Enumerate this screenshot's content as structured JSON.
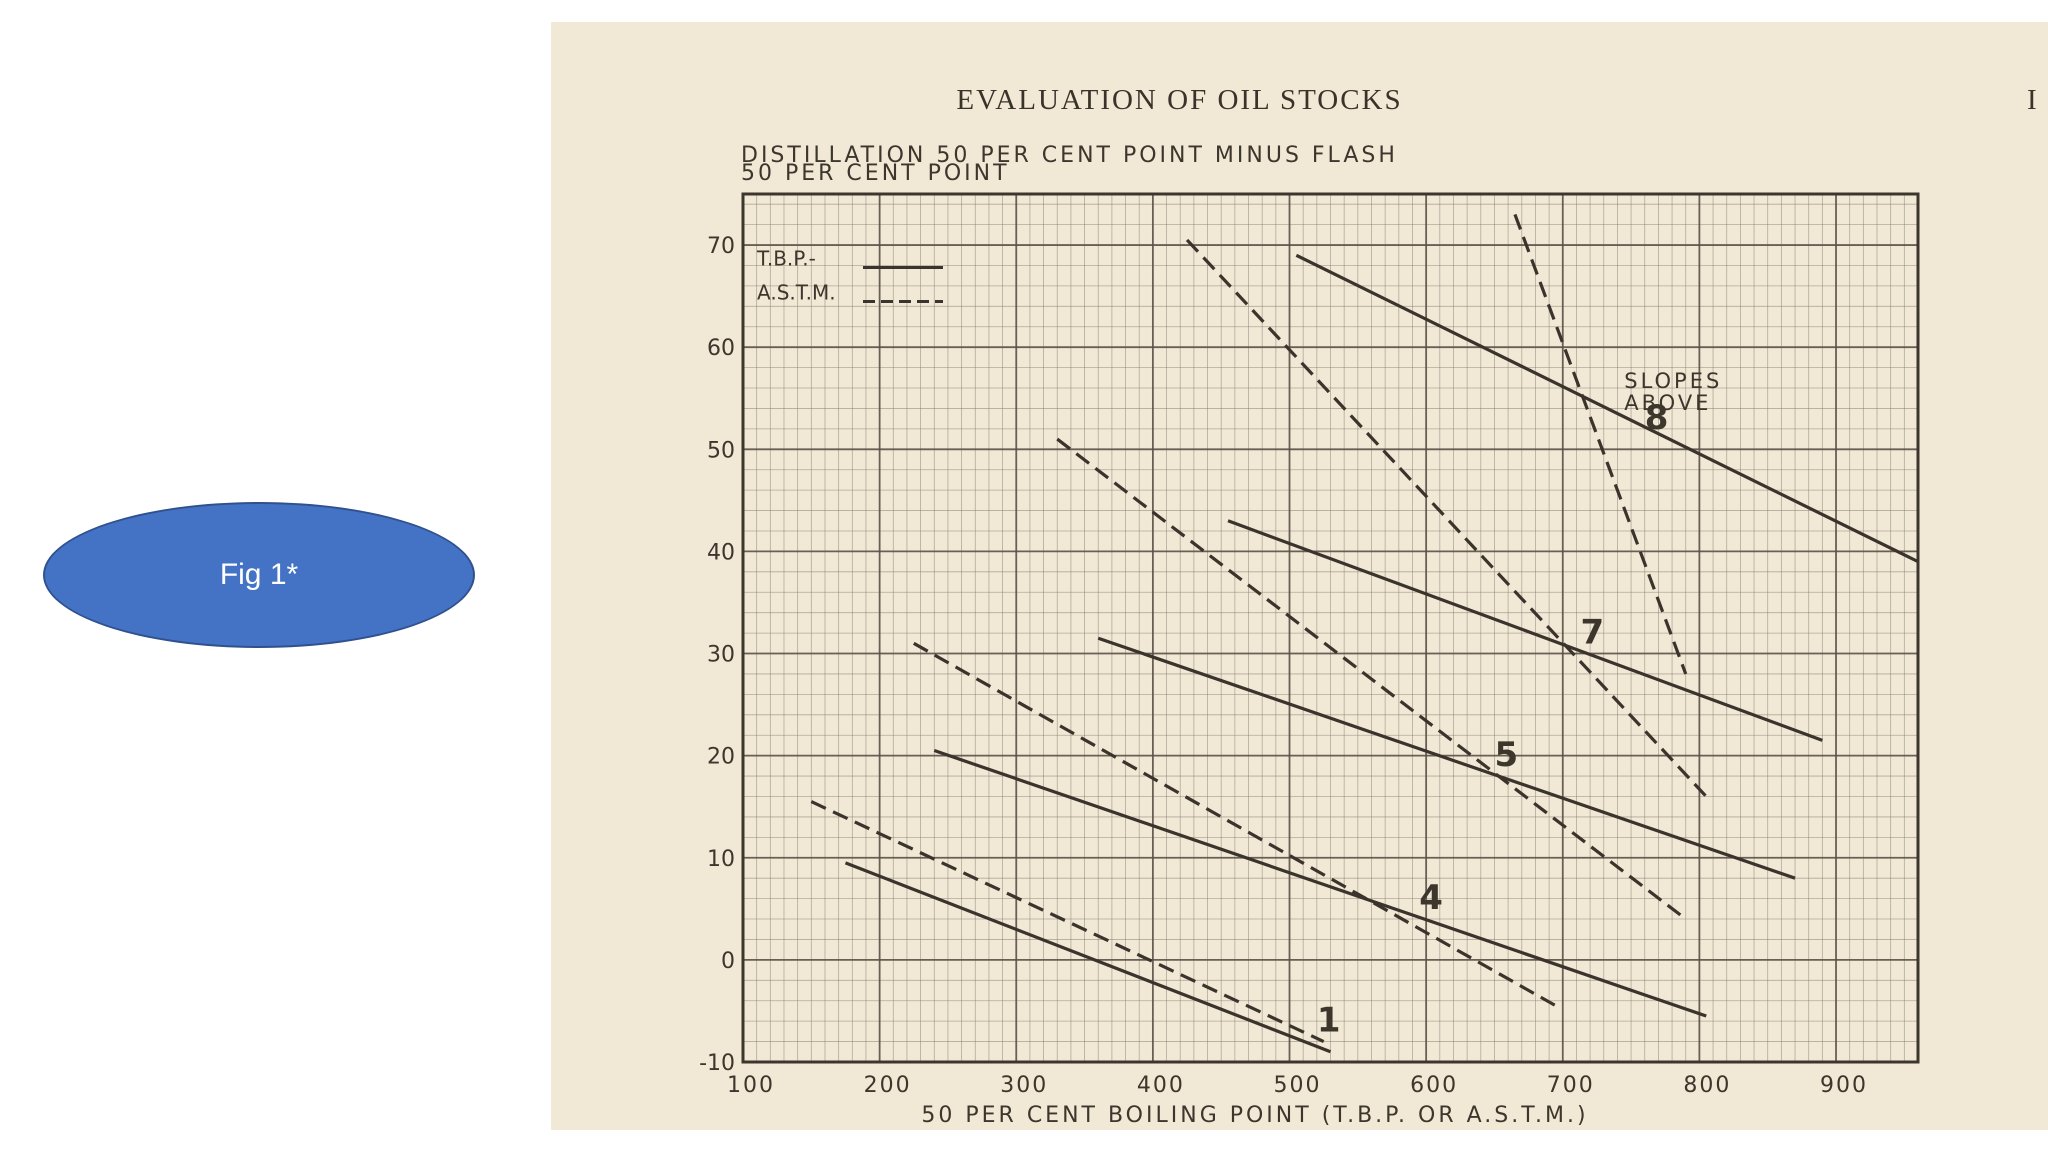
{
  "badge": {
    "label": "Fig 1*",
    "color": "#4472c4"
  },
  "page": {
    "heading": "EVALUATION OF OIL STOCKS",
    "edge_char": "I"
  },
  "chart_data": {
    "type": "line",
    "title": "DISTILLATION 50 PER CENT POINT MINUS FLASH",
    "title_line2": "50 PER CENT POINT",
    "xlabel": "50 PER CENT BOILING POINT (T.B.P. OR A.S.T.M.)",
    "ylabel": "",
    "xlim": [
      100,
      960
    ],
    "ylim": [
      -10,
      75
    ],
    "x_ticks": [
      100,
      200,
      300,
      400,
      500,
      600,
      700,
      800,
      900
    ],
    "y_ticks": [
      -10,
      0,
      10,
      20,
      30,
      40,
      50,
      60,
      70
    ],
    "grid": true,
    "legend": {
      "position": "top-left",
      "entries": [
        {
          "label": "T.B.P.-",
          "style": "solid"
        },
        {
          "label": "A.S.T.M.",
          "style": "dashed"
        }
      ]
    },
    "annotations": [
      {
        "text": "SLOPES ABOVE",
        "x": 745,
        "y": 56
      },
      {
        "text": "8",
        "x": 760,
        "y": 52
      },
      {
        "text": "7",
        "x": 713,
        "y": 31
      },
      {
        "text": "5",
        "x": 650,
        "y": 19
      },
      {
        "text": "4",
        "x": 595,
        "y": 5
      },
      {
        "text": "1",
        "x": 520,
        "y": -7
      }
    ],
    "series": [
      {
        "style": "solid",
        "x": [
          175,
          530
        ],
        "y": [
          9.5,
          -9
        ]
      },
      {
        "style": "dashed",
        "x": [
          150,
          525
        ],
        "y": [
          15.5,
          -8
        ]
      },
      {
        "style": "solid",
        "x": [
          240,
          805
        ],
        "y": [
          20.5,
          -5.5
        ]
      },
      {
        "style": "dashed",
        "x": [
          225,
          695
        ],
        "y": [
          31,
          -4.5
        ]
      },
      {
        "style": "solid",
        "x": [
          360,
          870
        ],
        "y": [
          31.5,
          8
        ]
      },
      {
        "style": "dashed",
        "x": [
          330,
          790
        ],
        "y": [
          51,
          4
        ]
      },
      {
        "style": "solid",
        "x": [
          455,
          890
        ],
        "y": [
          43,
          21.5
        ]
      },
      {
        "style": "dashed",
        "x": [
          425,
          805
        ],
        "y": [
          70.5,
          16
        ]
      },
      {
        "style": "solid",
        "x": [
          505,
          960
        ],
        "y": [
          69,
          39
        ]
      },
      {
        "style": "dashed",
        "x": [
          665,
          790
        ],
        "y": [
          73,
          28
        ]
      }
    ]
  }
}
